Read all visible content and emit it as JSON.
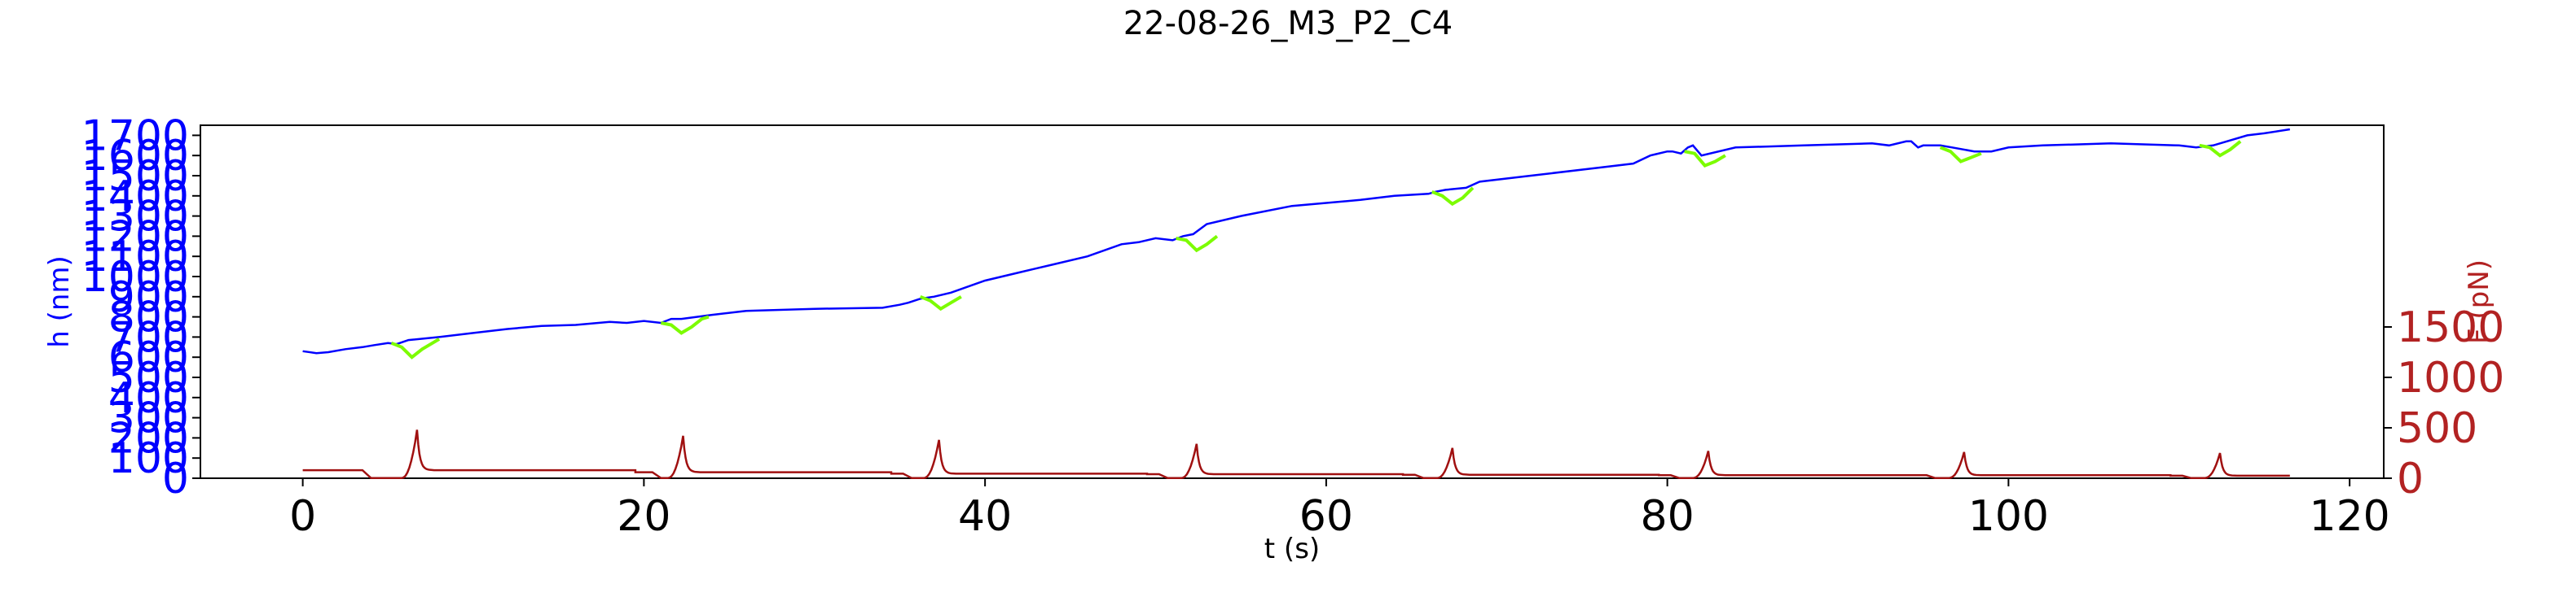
{
  "chart_data": {
    "type": "line",
    "title": "22-08-26_M3_P2_C4",
    "xlabel": "t (s)",
    "ylabel_left": "h (nm)",
    "ylabel_right": "F (pN)",
    "xlim": [
      -6,
      122
    ],
    "ylim_left": [
      0,
      1750
    ],
    "ylim_right": [
      0,
      3500
    ],
    "x_ticks": [
      0,
      20,
      40,
      60,
      80,
      100,
      120
    ],
    "y_left_ticks": [
      0,
      100,
      200,
      300,
      400,
      500,
      600,
      700,
      800,
      900,
      1000,
      1100,
      1200,
      1300,
      1400,
      1500,
      1600,
      1700
    ],
    "y_right_ticks": [
      0,
      500,
      1000,
      1500
    ],
    "grid": false,
    "colors": {
      "h": "#0000ff",
      "h_segments": "#7cfc00",
      "F": "#a01010",
      "right_axis": "#b22222"
    },
    "series": [
      {
        "axis": "left",
        "color": "#0000ff",
        "x": [
          0,
          0.8,
          1.5,
          2.5,
          3.5,
          4.2,
          5.0,
          5.5,
          6.2,
          8,
          10,
          12,
          14,
          16,
          18,
          19,
          20,
          21,
          21.6,
          22.2,
          24,
          26,
          30,
          34,
          35,
          35.5,
          36.2,
          37,
          38,
          40,
          42,
          44,
          46,
          48,
          49,
          50,
          51,
          51.6,
          52.2,
          53,
          55,
          58,
          62,
          64,
          66,
          66.4,
          67,
          68.2,
          69,
          72,
          76,
          78,
          79,
          80,
          80.3,
          80.8,
          81.2,
          81.5,
          82,
          84,
          88,
          92,
          93,
          94,
          94.3,
          94.7,
          95,
          96,
          96.7,
          98,
          99,
          100,
          102,
          106,
          110,
          111,
          112,
          112.4,
          114,
          115,
          116.5
        ],
        "y": [
          630,
          620,
          625,
          640,
          650,
          660,
          670,
          665,
          685,
          700,
          720,
          740,
          755,
          760,
          775,
          770,
          780,
          770,
          790,
          790,
          810,
          830,
          840,
          845,
          860,
          870,
          890,
          900,
          920,
          980,
          1020,
          1060,
          1100,
          1160,
          1170,
          1190,
          1180,
          1200,
          1210,
          1260,
          1300,
          1350,
          1380,
          1400,
          1410,
          1420,
          1430,
          1440,
          1470,
          1500,
          1540,
          1560,
          1600,
          1620,
          1620,
          1610,
          1640,
          1650,
          1600,
          1640,
          1650,
          1660,
          1650,
          1670,
          1670,
          1640,
          1650,
          1650,
          1640,
          1620,
          1620,
          1640,
          1650,
          1660,
          1650,
          1640,
          1650,
          1660,
          1700,
          1710,
          1730
        ]
      },
      {
        "axis": "left",
        "color": "#7cfc00",
        "segments": [
          {
            "x": [
              5.2,
              5.8,
              6.4,
              7.0,
              7.6,
              8.0
            ],
            "y": [
              670,
              650,
              600,
              640,
              670,
              690
            ]
          },
          {
            "x": [
              21.0,
              21.6,
              22.2,
              22.8,
              23.4,
              23.8
            ],
            "y": [
              770,
              760,
              720,
              750,
              790,
              800
            ]
          },
          {
            "x": [
              36.2,
              36.8,
              37.4,
              38.0,
              38.6
            ],
            "y": [
              900,
              880,
              840,
              870,
              900
            ]
          },
          {
            "x": [
              51.2,
              51.8,
              52.4,
              53.0,
              53.6
            ],
            "y": [
              1190,
              1180,
              1130,
              1160,
              1200
            ]
          },
          {
            "x": [
              66.2,
              66.8,
              67.4,
              68.0,
              68.6
            ],
            "y": [
              1420,
              1400,
              1360,
              1390,
              1440
            ]
          },
          {
            "x": [
              81.0,
              81.6,
              82.2,
              82.8,
              83.4
            ],
            "y": [
              1620,
              1610,
              1550,
              1570,
              1600
            ]
          },
          {
            "x": [
              96.0,
              96.6,
              97.2,
              97.8,
              98.4
            ],
            "y": [
              1640,
              1620,
              1570,
              1590,
              1610
            ]
          },
          {
            "x": [
              111.2,
              111.8,
              112.4,
              113.0,
              113.6
            ],
            "y": [
              1650,
              1640,
              1600,
              1630,
              1670
            ]
          }
        ]
      },
      {
        "axis": "right",
        "color": "#a01010",
        "pulses": [
          {
            "start": 0,
            "hold_end": 3.5,
            "peak_t": 6.7,
            "peak": 480,
            "hold": 80,
            "end": 19.5
          },
          {
            "start": 19.5,
            "hold_end": 20.5,
            "peak_t": 22.3,
            "peak": 420,
            "hold": 60,
            "end": 34.5
          },
          {
            "start": 34.5,
            "hold_end": 35.2,
            "peak_t": 37.3,
            "peak": 380,
            "hold": 45,
            "end": 49.5
          },
          {
            "start": 49.5,
            "hold_end": 50.2,
            "peak_t": 52.4,
            "peak": 340,
            "hold": 40,
            "end": 64.5
          },
          {
            "start": 64.5,
            "hold_end": 65.2,
            "peak_t": 67.4,
            "peak": 300,
            "hold": 35,
            "end": 79.5
          },
          {
            "start": 79.5,
            "hold_end": 80.2,
            "peak_t": 82.4,
            "peak": 270,
            "hold": 30,
            "end": 94.5
          },
          {
            "start": 94.5,
            "hold_end": 95.2,
            "peak_t": 97.4,
            "peak": 260,
            "hold": 30,
            "end": 109.5
          },
          {
            "start": 109.5,
            "hold_end": 110.2,
            "peak_t": 112.4,
            "peak": 250,
            "hold": 25,
            "end": 116.5
          }
        ]
      }
    ]
  }
}
